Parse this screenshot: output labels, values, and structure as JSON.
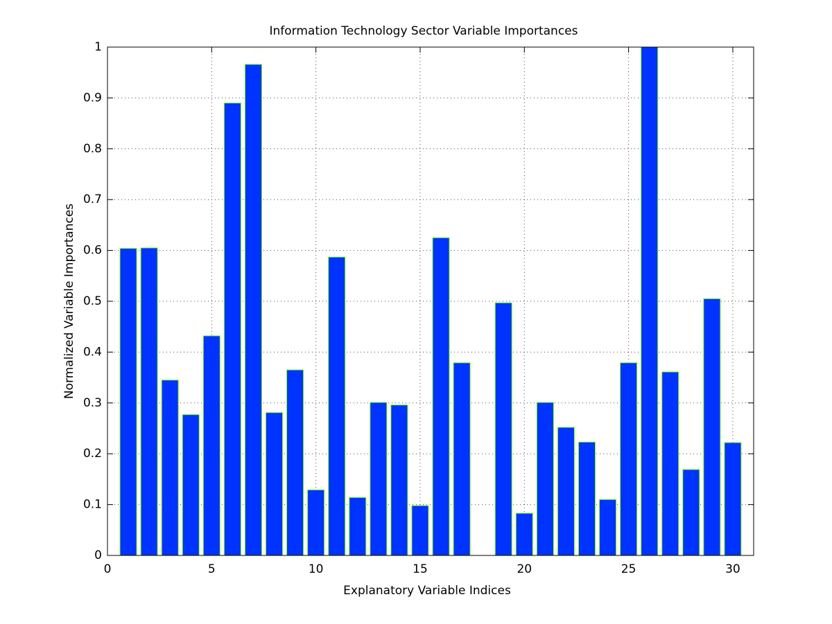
{
  "chart_data": {
    "type": "bar",
    "title": "Information Technology Sector Variable Importances",
    "x_label": "Explanatory Variable Indices",
    "y_label": "Normalized Variable Importances",
    "x": [
      1,
      2,
      3,
      4,
      5,
      6,
      7,
      8,
      9,
      10,
      11,
      12,
      13,
      14,
      15,
      16,
      17,
      18,
      19,
      20,
      21,
      22,
      23,
      24,
      25,
      26,
      27,
      28,
      29,
      30
    ],
    "values": [
      0.604,
      0.605,
      0.345,
      0.277,
      0.432,
      0.89,
      0.966,
      0.281,
      0.365,
      0.129,
      0.587,
      0.114,
      0.301,
      0.296,
      0.098,
      0.625,
      0.379,
      0,
      0.497,
      0.083,
      0.301,
      0.252,
      0.223,
      0.11,
      0.379,
      1,
      0.361,
      0.169,
      0.505,
      0.222
    ],
    "color": "#0033ff",
    "edge_color": "#7fff00",
    "xlim": [
      0,
      31
    ],
    "xticks": [
      0,
      5,
      10,
      15,
      20,
      25,
      30
    ],
    "ylim": [
      0,
      1
    ],
    "yticks": [
      0,
      0.1,
      0.2,
      0.3,
      0.4,
      0.5,
      0.6,
      0.7,
      0.8,
      0.9,
      1
    ],
    "grid": true
  }
}
